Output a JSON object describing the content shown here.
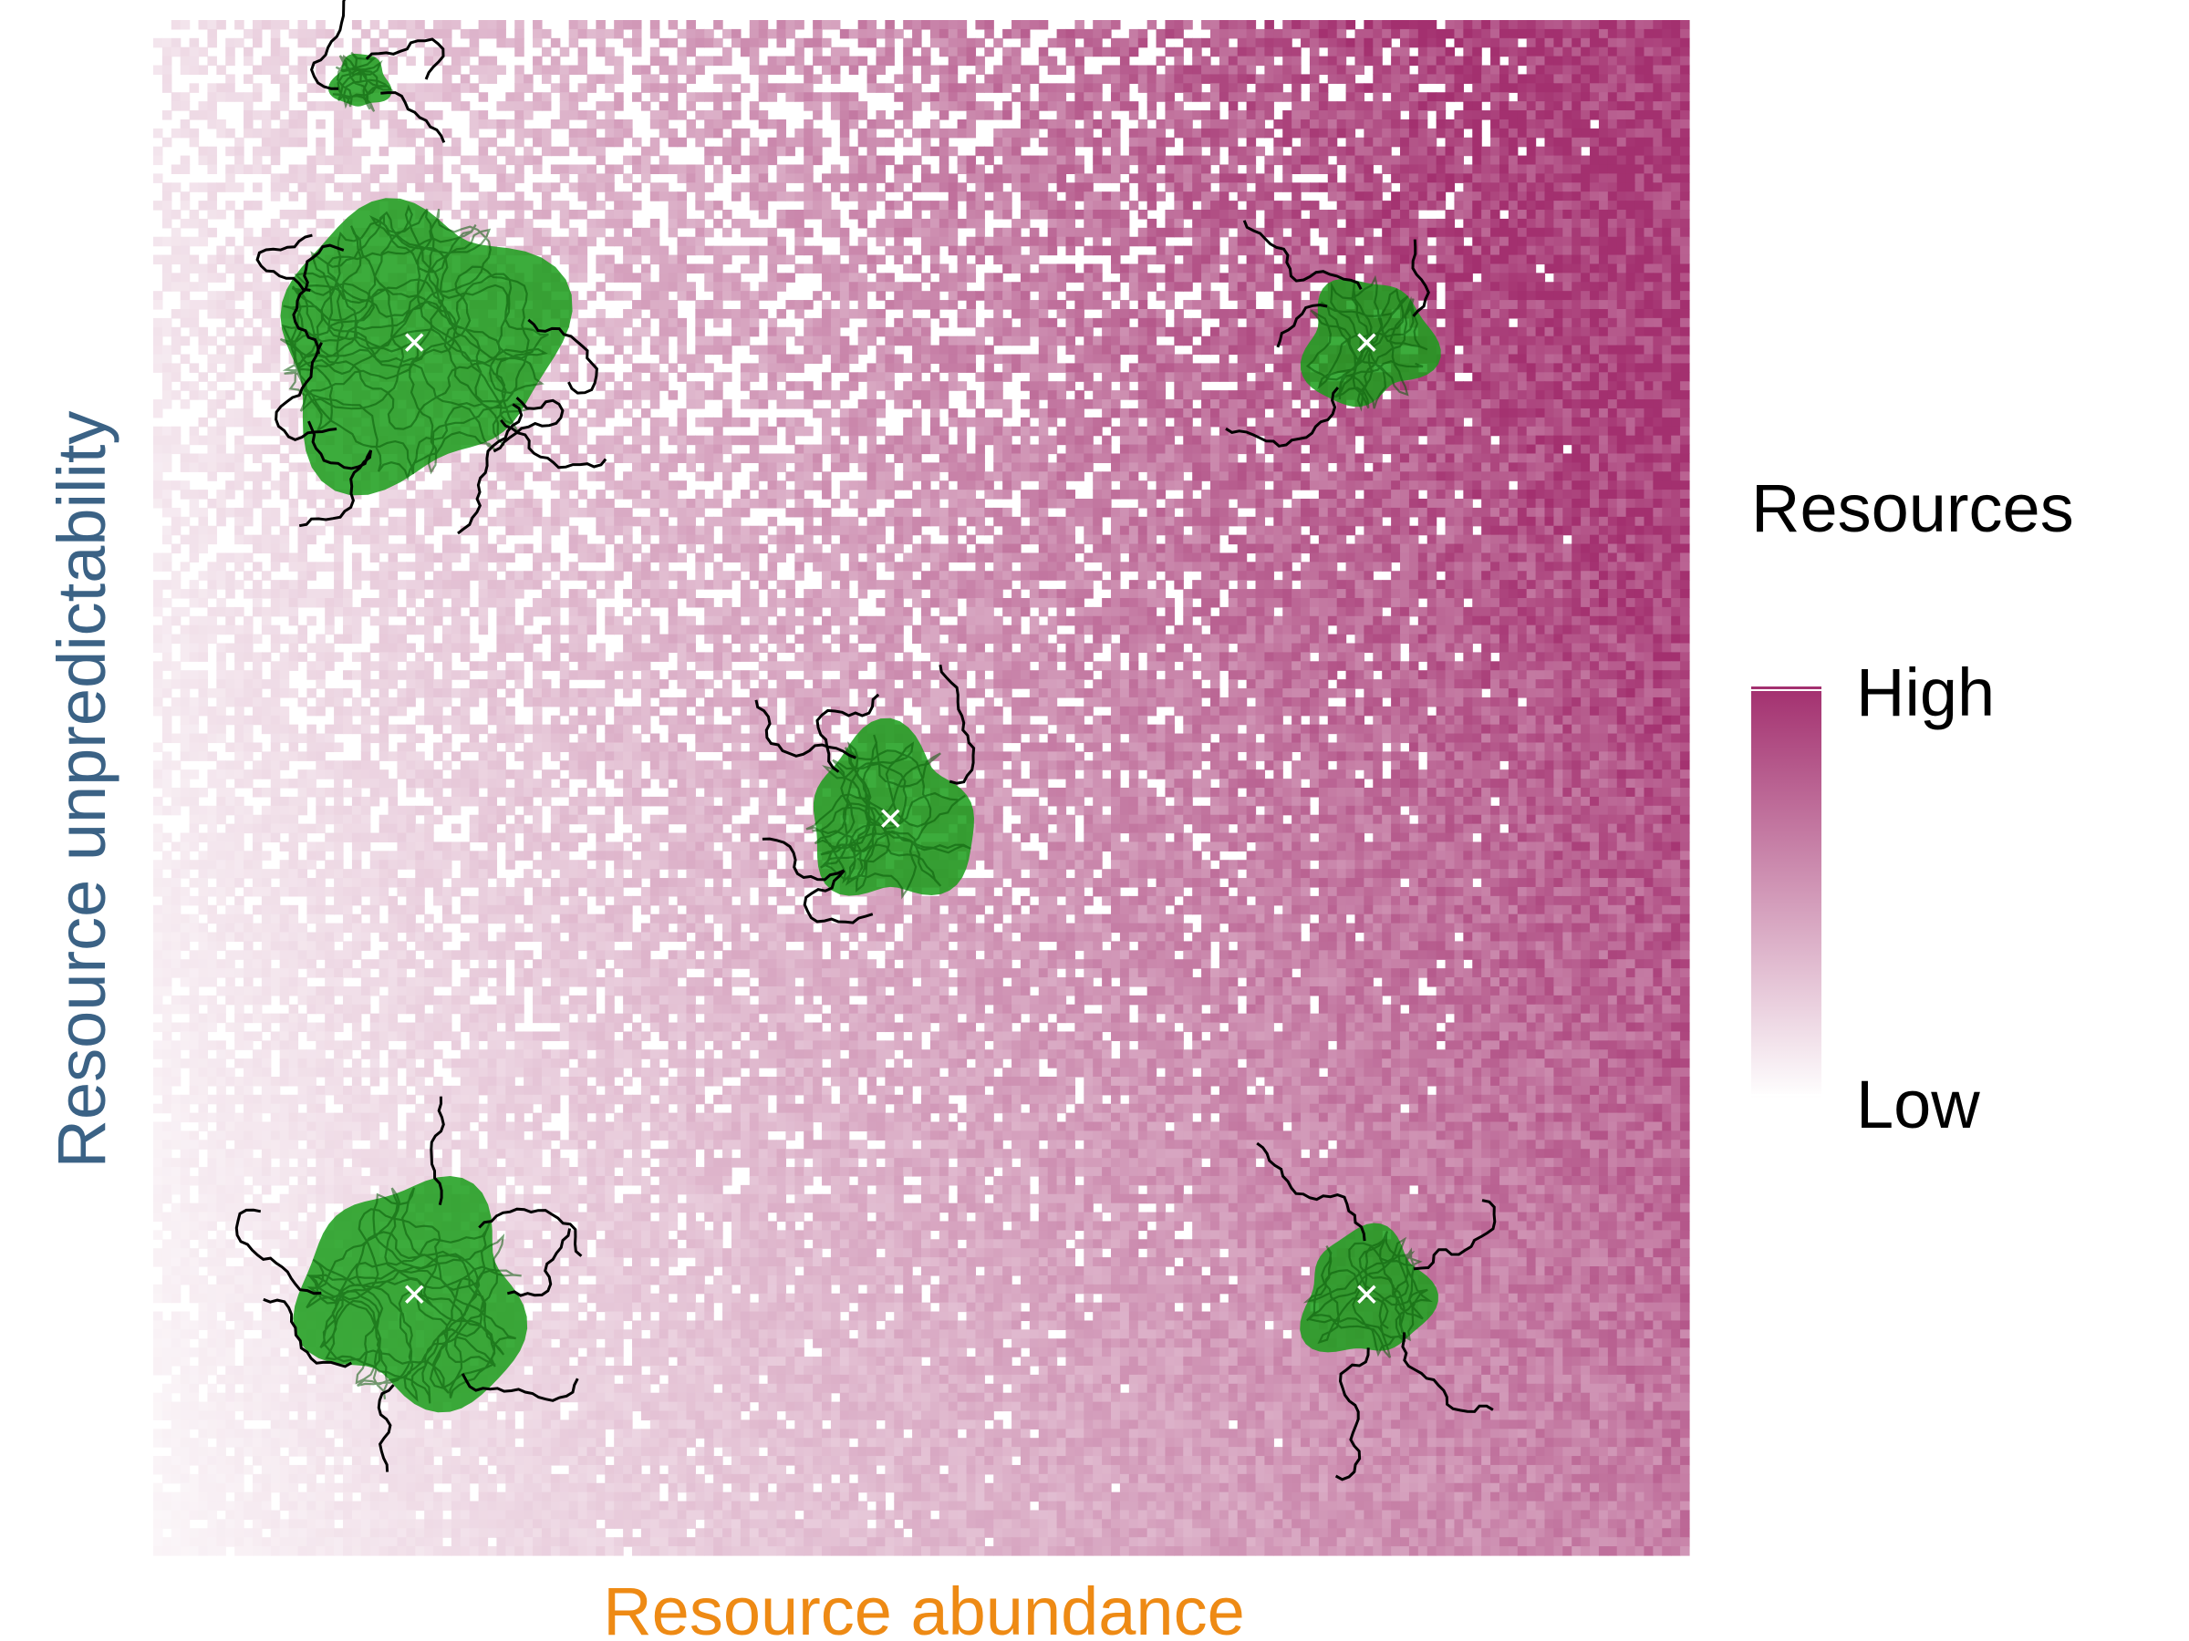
{
  "chart_data": {
    "type": "heatmap",
    "xlabel": "Resource abundance",
    "ylabel": "Resource unpredictability",
    "x_axis_color": "#ee8a14",
    "y_axis_color": "#3b6285",
    "legend": {
      "title": "Resources",
      "high_label": "High",
      "low_label": "Low",
      "placement": "right"
    },
    "colors": {
      "high": "#a3306f",
      "low": "#ffffff",
      "home_range_fill": "#1a9e1a",
      "track": "#000000",
      "centroid_marker": "#ffffff"
    },
    "grid_cells": 170,
    "grid": false,
    "home_ranges": [
      {
        "x": 0.17,
        "y": 0.79,
        "size": "large",
        "relative_radius": 1.0
      },
      {
        "x": 0.17,
        "y": 0.17,
        "size": "large",
        "relative_radius": 0.8
      },
      {
        "x": 0.48,
        "y": 0.48,
        "size": "medium",
        "relative_radius": 0.6
      },
      {
        "x": 0.79,
        "y": 0.79,
        "size": "small",
        "relative_radius": 0.46
      },
      {
        "x": 0.79,
        "y": 0.17,
        "size": "small",
        "relative_radius": 0.46
      },
      {
        "x": 0.135,
        "y": 0.96,
        "size": "tiny",
        "relative_radius": 0.2,
        "centroid_marker": false
      }
    ]
  }
}
